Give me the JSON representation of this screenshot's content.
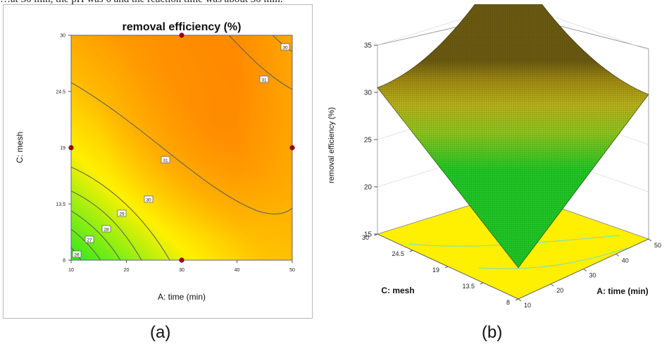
{
  "top_text": "…at 30 min, the pH was 6 and the reaction time was about 30 min.",
  "captions": {
    "a": "(a)",
    "b": "(b)"
  },
  "colors": {
    "low": "#2ee61c",
    "mid": "#ffe600",
    "high": "#ff8c00",
    "design_point": "#9b0000",
    "contour_line": "#5a5a5a"
  },
  "chart_data": [
    {
      "type": "contour",
      "title": "removal efficiency (%)",
      "xlabel": "A: time (min)",
      "ylabel": "C: mesh",
      "xlim": [
        10,
        50
      ],
      "ylim": [
        8,
        30
      ],
      "x_ticks": [
        "10",
        "20",
        "30",
        "40",
        "50"
      ],
      "y_ticks": [
        "8",
        "13.5",
        "19",
        "24.5",
        "30"
      ],
      "contour_levels": [
        {
          "label": "26",
          "value": 26
        },
        {
          "label": "27",
          "value": 27
        },
        {
          "label": "28",
          "value": 28
        },
        {
          "label": "29",
          "value": 29
        },
        {
          "label": "30",
          "value": 30
        },
        {
          "label": "31",
          "value": 31
        },
        {
          "label": "31",
          "value": 31
        },
        {
          "label": "30",
          "value": 30
        }
      ],
      "design_points": [
        {
          "x": 30,
          "y": 30
        },
        {
          "x": 10,
          "y": 19
        },
        {
          "x": 50,
          "y": 19
        },
        {
          "x": 30,
          "y": 8
        }
      ]
    },
    {
      "type": "surface3d",
      "zlabel": "removal efficiency (%)",
      "xlabel": "A: time (min)",
      "ylabel": "C: mesh",
      "zlim": [
        15,
        35
      ],
      "z_ticks": [
        "15",
        "20",
        "25",
        "30",
        "35"
      ],
      "x_ticks": [
        "10",
        "20",
        "30",
        "40",
        "50"
      ],
      "y_ticks": [
        "8",
        "13.5",
        "19",
        "24.5",
        "30"
      ],
      "corner_values": [
        {
          "x": 10,
          "y": 30,
          "z": 30.5
        },
        {
          "x": 50,
          "y": 30,
          "z": 29.5
        },
        {
          "x": 50,
          "y": 8,
          "z": 30.3
        },
        {
          "x": 10,
          "y": 8,
          "z": 18.3
        }
      ],
      "peak_z": 32.5
    }
  ]
}
